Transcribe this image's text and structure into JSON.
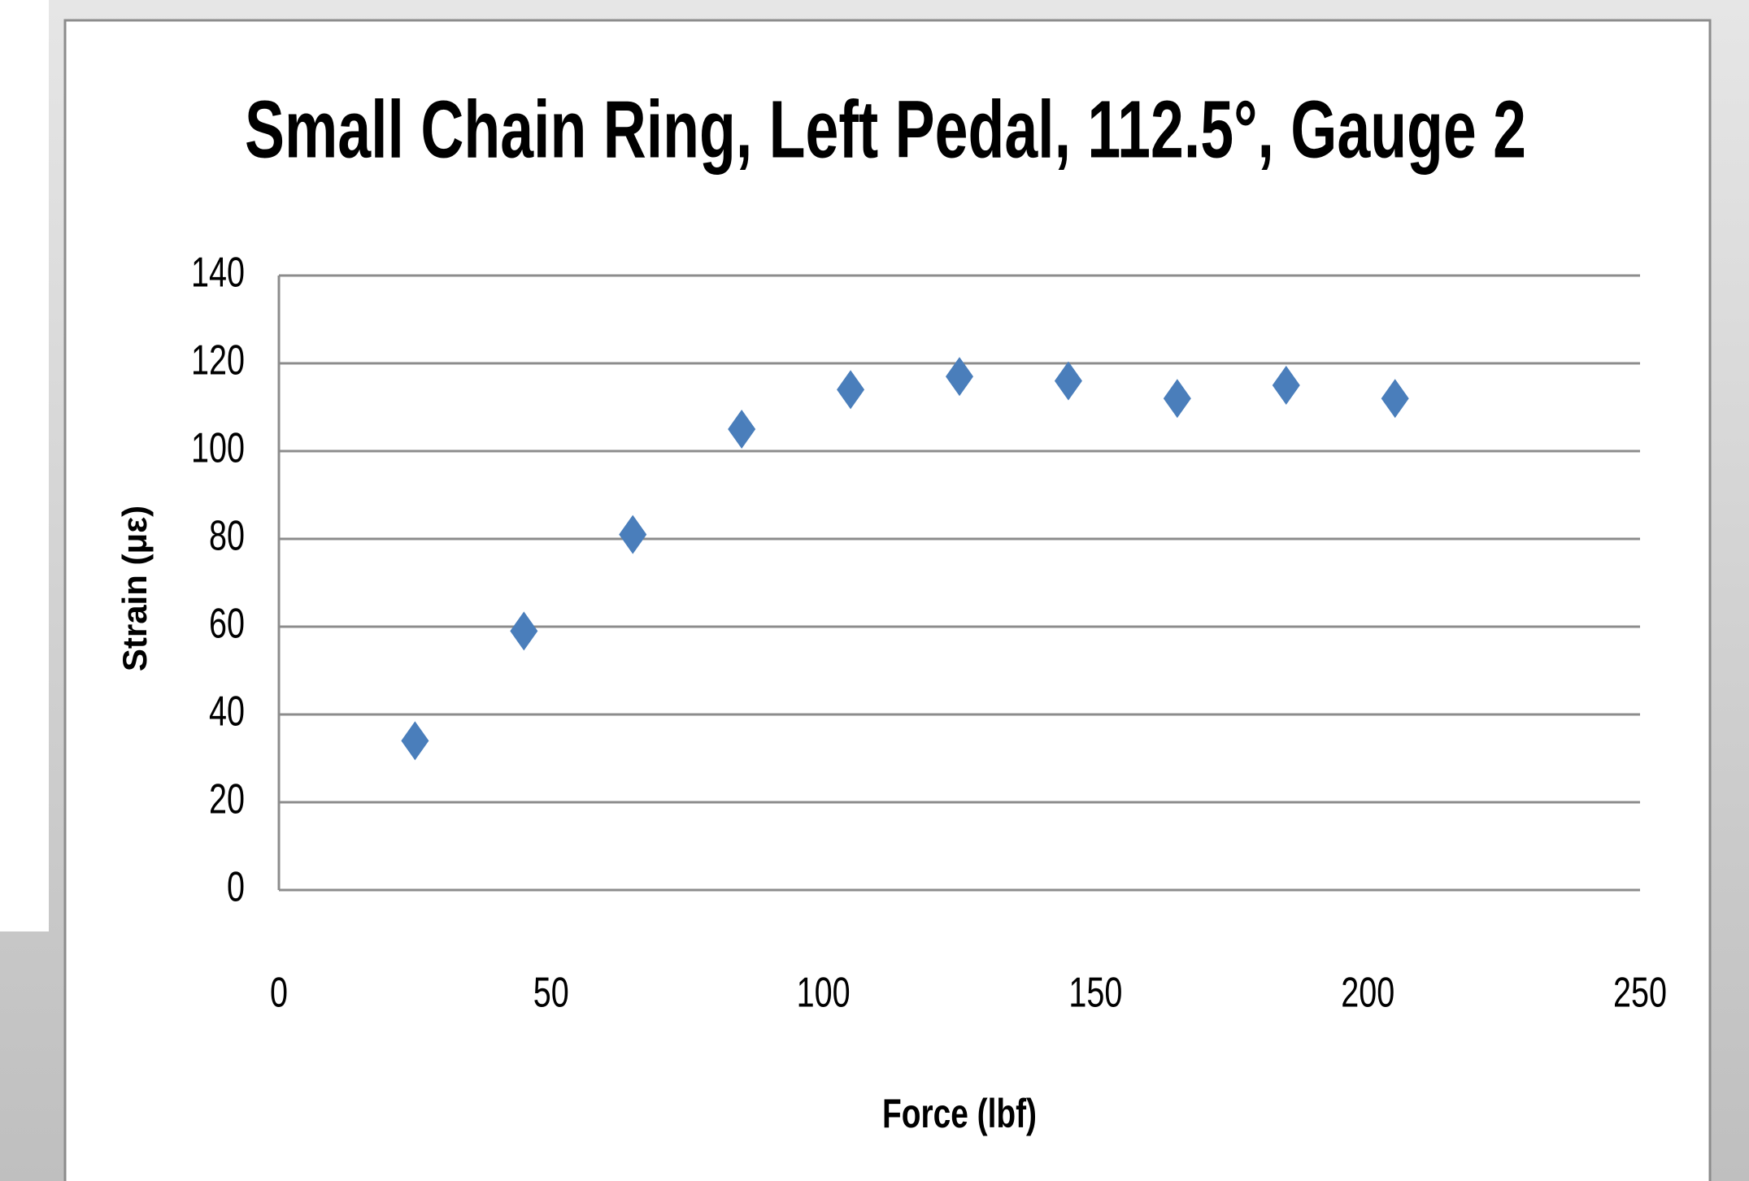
{
  "chart_data": {
    "type": "scatter",
    "title": "Small Chain Ring, Left Pedal, 112.5°, Gauge 2",
    "x_label": "Force (lbf)",
    "y_label": "Strain (με)",
    "x": [
      25,
      45,
      65,
      85,
      105,
      125,
      145,
      165,
      185,
      205
    ],
    "series": [
      {
        "name": "Gauge 2",
        "color": "#4a7ebb",
        "values": [
          34,
          59,
          81,
          105,
          114,
          117,
          116,
          112,
          115,
          112
        ]
      }
    ],
    "xlim": [
      0,
      250
    ],
    "xticks": [
      0,
      50,
      100,
      150,
      200,
      250
    ],
    "ylim": [
      0,
      140
    ],
    "yticks": [
      0,
      20,
      40,
      60,
      80,
      100,
      120,
      140
    ],
    "grid": true
  }
}
